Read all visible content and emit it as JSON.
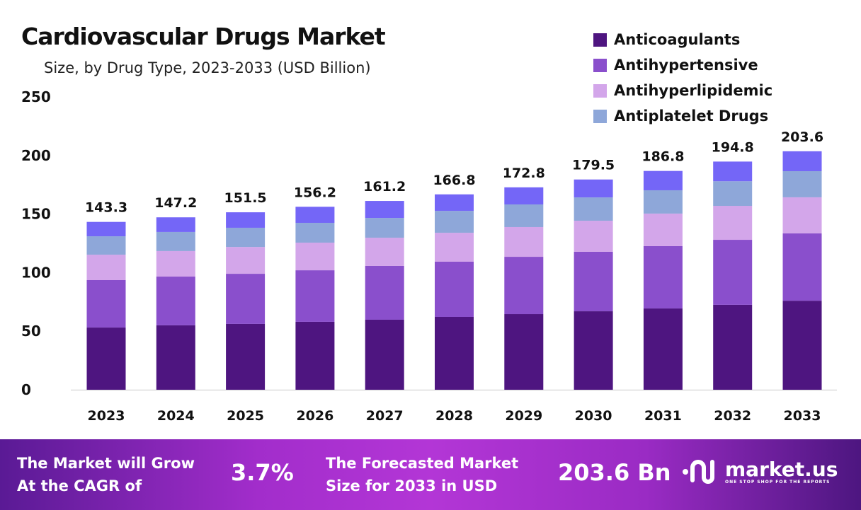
{
  "chart_data": {
    "type": "bar",
    "stacked": true,
    "title": "Cardiovascular Drugs Market",
    "subtitle": "Size, by Drug Type, 2023-2033 (USD Billion)",
    "categories": [
      "2023",
      "2024",
      "2025",
      "2026",
      "2027",
      "2028",
      "2029",
      "2030",
      "2031",
      "2032",
      "2033"
    ],
    "totals": [
      "143.3",
      "147.2",
      "151.5",
      "156.2",
      "161.2",
      "166.8",
      "172.8",
      "179.5",
      "186.8",
      "194.8",
      "203.6"
    ],
    "series": [
      {
        "name": "Anticoagulants",
        "color": "#4e1580",
        "values": [
          53.1,
          55.0,
          56.2,
          58.0,
          59.8,
          62.2,
          64.6,
          67.0,
          69.4,
          72.5,
          76.0
        ]
      },
      {
        "name": "Antihypertensive",
        "color": "#8a4fcc",
        "values": [
          40.5,
          41.6,
          42.8,
          44.0,
          45.9,
          47.1,
          48.9,
          50.8,
          53.2,
          55.5,
          57.5
        ]
      },
      {
        "name": "Antihyperlipidemic",
        "color": "#d3a6ea",
        "values": [
          21.7,
          21.8,
          22.9,
          23.6,
          24.1,
          24.7,
          25.4,
          26.5,
          27.8,
          29.0,
          30.8
        ]
      },
      {
        "name": "Antiplatelet Drugs",
        "color": "#8ea7d9",
        "values": [
          15.7,
          16.3,
          16.4,
          16.9,
          16.9,
          18.7,
          19.3,
          19.9,
          19.9,
          21.0,
          22.3
        ]
      },
      {
        "color": "#7466f7",
        "values": [
          12.3,
          12.5,
          13.2,
          13.7,
          14.5,
          14.1,
          14.6,
          15.3,
          16.5,
          16.8,
          17.0
        ]
      }
    ],
    "yticks": [
      "0",
      "50",
      "100",
      "150",
      "200",
      "250"
    ],
    "ylim": [
      0,
      250
    ],
    "grid": false,
    "legend_position": "top-right"
  },
  "banner": {
    "cagr_label_1": "The Market will Grow",
    "cagr_label_2": "At the CAGR of",
    "cagr_value": "3.7%",
    "forecast_label_1": "The Forecasted Market",
    "forecast_label_2": "Size for 2033 in USD",
    "forecast_value": "203.6 Bn",
    "logo_text": "market.us",
    "logo_tagline": "ONE STOP SHOP FOR THE REPORTS"
  }
}
